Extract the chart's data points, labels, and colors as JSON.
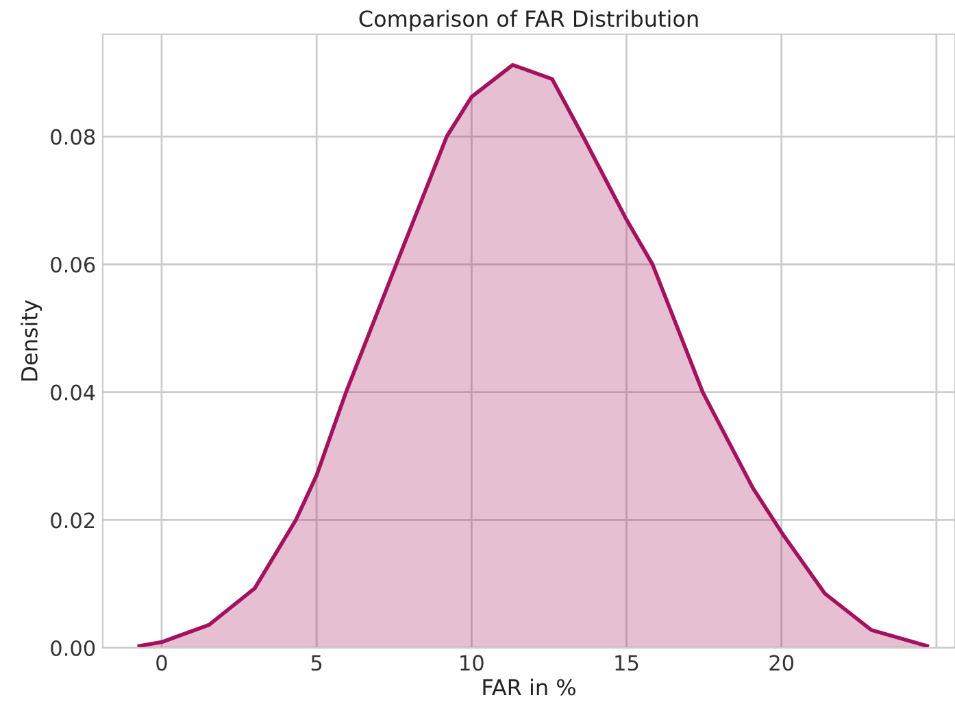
{
  "chart_data": {
    "type": "area",
    "title": "Comparison of FAR Distribution",
    "xlabel": "FAR in %",
    "ylabel": "Density",
    "series": [
      {
        "color": "#a3125e",
        "x": [
          -0.72,
          0,
          1.53,
          3.0,
          4.33,
          5,
          5.95,
          7.57,
          9.2,
          10,
          11.33,
          12.6,
          13.6,
          15.0,
          15.84,
          17.46,
          19.08,
          20.04,
          21.4,
          22.9,
          24.7
        ],
        "values": [
          0.0003,
          0.0009,
          0.0036,
          0.0093,
          0.02,
          0.027,
          0.04,
          0.06,
          0.08,
          0.0862,
          0.0912,
          0.089,
          0.08,
          0.067,
          0.06,
          0.04,
          0.025,
          0.0178,
          0.0085,
          0.0028,
          0.0003
        ]
      }
    ],
    "xlim": [
      -1.9,
      25.6
    ],
    "xticks": [
      0,
      5,
      10,
      15,
      20,
      {
        "value": 25,
        "label": null
      }
    ],
    "ylim": [
      0,
      0.096
    ],
    "yticks": [
      {
        "value": 0,
        "label": "0.00"
      },
      {
        "value": 0.02,
        "label": "0.02"
      },
      {
        "value": 0.04,
        "label": "0.04"
      },
      {
        "value": 0.06,
        "label": "0.06"
      },
      {
        "value": 0.08,
        "label": "0.08"
      }
    ],
    "grid": true
  }
}
